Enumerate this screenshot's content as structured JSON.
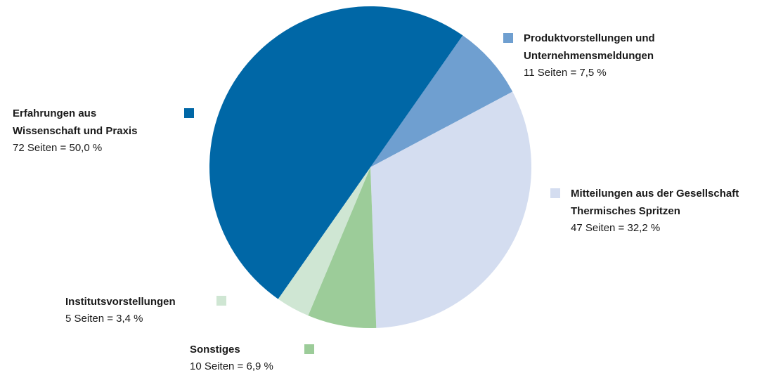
{
  "chart_data": {
    "type": "pie",
    "categories": [
      [
        "Produktvorstellungen und",
        "Unternehmensmeldungen"
      ],
      [
        "Mitteilungen aus der Gesellschaft",
        "Thermisches Spritzen"
      ],
      [
        "Sonstiges"
      ],
      [
        "Institutsvorstellungen"
      ],
      [
        "Erfahrungen aus",
        "Wissenschaft und Praxis"
      ]
    ],
    "values": [
      7.5,
      32.2,
      6.9,
      3.4,
      50.0
    ],
    "value_labels": [
      "11 Seiten = 7,5 %",
      "47 Seiten = 32,2 %",
      "10 Seiten = 6,9 %",
      "5 Seiten = 3,4 %",
      "72 Seiten = 50,0 %"
    ],
    "colors": [
      "#6f9fd0",
      "#d4ddf0",
      "#9ccc99",
      "#cfe6d3",
      "#0067a6"
    ]
  }
}
